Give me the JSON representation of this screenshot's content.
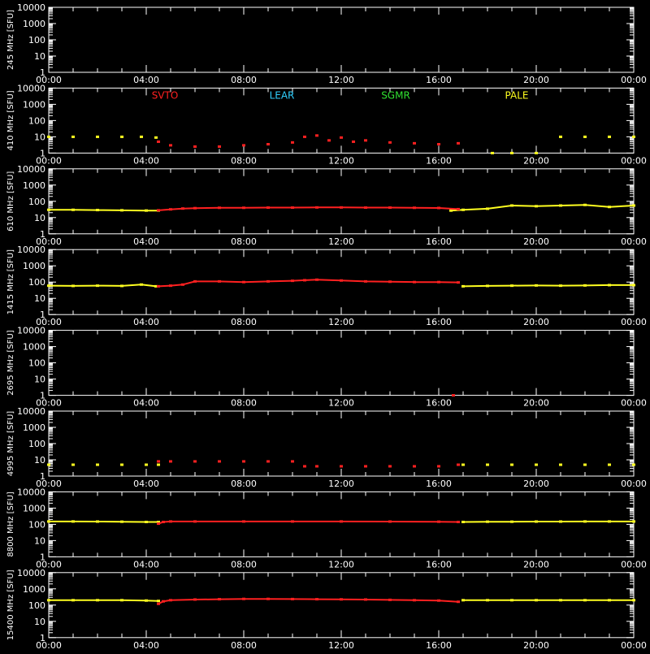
{
  "figure": {
    "background": "#000000",
    "axis_color": "#ffffff",
    "station_colors": {
      "SVTO": "#ff2020",
      "LEAR": "#30d0ff",
      "SGMR": "#30e030",
      "PALE": "#ffff20"
    },
    "legend": [
      "SVTO",
      "LEAR",
      "SGMR",
      "PALE"
    ],
    "x_tick_labels": [
      "00:00",
      "04:00",
      "08:00",
      "12:00",
      "16:00",
      "20:00",
      "00:00"
    ],
    "y_tick_labels": [
      "1",
      "10",
      "100",
      "1000",
      "10000"
    ]
  },
  "chart_data": [
    {
      "type": "scatter",
      "ylabel": "245 MHz [SFU]",
      "xlim": [
        0,
        24
      ],
      "ylim": [
        1,
        10000
      ],
      "yscale": "log",
      "series": []
    },
    {
      "type": "scatter",
      "ylabel": "410 MHz [SFU]",
      "xlim": [
        0,
        24
      ],
      "ylim": [
        1,
        10000
      ],
      "yscale": "log",
      "series": [
        {
          "name": "PALE",
          "color": "#ffff20",
          "points": [
            [
              0,
              10
            ],
            [
              1,
              10
            ],
            [
              2,
              10
            ],
            [
              3,
              10
            ],
            [
              3.8,
              10
            ],
            [
              4.4,
              9
            ],
            [
              18.2,
              1
            ],
            [
              19,
              1
            ],
            [
              20,
              1
            ],
            [
              21,
              10
            ],
            [
              22,
              10
            ],
            [
              23,
              10
            ],
            [
              24,
              10
            ]
          ]
        },
        {
          "name": "SVTO",
          "color": "#ff2020",
          "points": [
            [
              4.5,
              5
            ],
            [
              5,
              3
            ],
            [
              6,
              2.5
            ],
            [
              7,
              2.5
            ],
            [
              8,
              3
            ],
            [
              9,
              3.5
            ],
            [
              10,
              4.5
            ],
            [
              10.5,
              10
            ],
            [
              11,
              12
            ],
            [
              11.5,
              6
            ],
            [
              12,
              9
            ],
            [
              12.5,
              5
            ],
            [
              13,
              6
            ],
            [
              14,
              4.5
            ],
            [
              15,
              4
            ],
            [
              16,
              3.5
            ],
            [
              16.8,
              4
            ]
          ]
        }
      ]
    },
    {
      "type": "line",
      "ylabel": "610 MHz [SFU]",
      "xlim": [
        0,
        24
      ],
      "ylim": [
        1,
        10000
      ],
      "yscale": "log",
      "series": [
        {
          "name": "PALE",
          "color": "#ffff20",
          "points": [
            [
              0,
              30
            ],
            [
              1,
              30
            ],
            [
              2,
              29
            ],
            [
              3,
              28
            ],
            [
              4,
              27
            ],
            [
              4.5,
              27
            ],
            [
              16.5,
              27
            ],
            [
              17,
              30
            ],
            [
              18,
              35
            ],
            [
              19,
              55
            ],
            [
              20,
              50
            ],
            [
              21,
              55
            ],
            [
              22,
              60
            ],
            [
              23,
              45
            ],
            [
              24,
              55
            ]
          ]
        },
        {
          "name": "SVTO",
          "color": "#ff2020",
          "points": [
            [
              4.5,
              28
            ],
            [
              5,
              32
            ],
            [
              5.5,
              36
            ],
            [
              6,
              38
            ],
            [
              7,
              40
            ],
            [
              8,
              40
            ],
            [
              9,
              41
            ],
            [
              10,
              41
            ],
            [
              11,
              42
            ],
            [
              12,
              42
            ],
            [
              13,
              41
            ],
            [
              14,
              41
            ],
            [
              15,
              40
            ],
            [
              16,
              39
            ],
            [
              16.8,
              33
            ]
          ]
        }
      ]
    },
    {
      "type": "line",
      "ylabel": "1415 MHz [SFU]",
      "xlim": [
        0,
        24
      ],
      "ylim": [
        1,
        10000
      ],
      "yscale": "log",
      "series": [
        {
          "name": "PALE",
          "color": "#ffff20",
          "points": [
            [
              0,
              60
            ],
            [
              1,
              58
            ],
            [
              2,
              60
            ],
            [
              3,
              58
            ],
            [
              3.8,
              70
            ],
            [
              4.4,
              55
            ],
            [
              17,
              55
            ],
            [
              18,
              58
            ],
            [
              19,
              60
            ],
            [
              20,
              62
            ],
            [
              21,
              60
            ],
            [
              22,
              62
            ],
            [
              23,
              65
            ],
            [
              24,
              65
            ]
          ]
        },
        {
          "name": "SVTO",
          "color": "#ff2020",
          "points": [
            [
              4.5,
              55
            ],
            [
              5,
              60
            ],
            [
              5.5,
              70
            ],
            [
              6,
              110
            ],
            [
              7,
              110
            ],
            [
              8,
              100
            ],
            [
              9,
              110
            ],
            [
              10,
              120
            ],
            [
              10.5,
              130
            ],
            [
              11,
              140
            ],
            [
              12,
              125
            ],
            [
              13,
              110
            ],
            [
              14,
              105
            ],
            [
              15,
              100
            ],
            [
              16,
              100
            ],
            [
              16.8,
              95
            ]
          ]
        }
      ]
    },
    {
      "type": "scatter",
      "ylabel": "2695 MHz [SFU]",
      "xlim": [
        0,
        24
      ],
      "ylim": [
        1,
        10000
      ],
      "yscale": "log",
      "series": [
        {
          "name": "SVTO",
          "color": "#ff2020",
          "points": [
            [
              16.6,
              1
            ]
          ]
        }
      ]
    },
    {
      "type": "scatter",
      "ylabel": "4995 MHz [SFU]",
      "xlim": [
        0,
        24
      ],
      "ylim": [
        1,
        10000
      ],
      "yscale": "log",
      "series": [
        {
          "name": "PALE",
          "color": "#ffff20",
          "points": [
            [
              0,
              5
            ],
            [
              1,
              5
            ],
            [
              2,
              5
            ],
            [
              3,
              5
            ],
            [
              4,
              5
            ],
            [
              4.5,
              5
            ],
            [
              17,
              5
            ],
            [
              18,
              5
            ],
            [
              19,
              5
            ],
            [
              20,
              5
            ],
            [
              21,
              5
            ],
            [
              22,
              5
            ],
            [
              23,
              5
            ],
            [
              24,
              5
            ]
          ]
        },
        {
          "name": "SVTO",
          "color": "#ff2020",
          "points": [
            [
              4.5,
              8
            ],
            [
              5,
              8
            ],
            [
              6,
              8
            ],
            [
              7,
              8
            ],
            [
              8,
              8
            ],
            [
              9,
              8
            ],
            [
              10,
              8
            ],
            [
              10.5,
              4
            ],
            [
              11,
              4
            ],
            [
              12,
              4
            ],
            [
              13,
              4
            ],
            [
              14,
              4
            ],
            [
              15,
              4
            ],
            [
              16,
              4
            ],
            [
              16.8,
              5
            ]
          ]
        }
      ]
    },
    {
      "type": "line",
      "ylabel": "8800 MHz [SFU]",
      "xlim": [
        0,
        24
      ],
      "ylim": [
        1,
        10000
      ],
      "yscale": "log",
      "series": [
        {
          "name": "PALE",
          "color": "#ffff20",
          "points": [
            [
              0,
              150
            ],
            [
              1,
              150
            ],
            [
              2,
              148
            ],
            [
              3,
              145
            ],
            [
              4,
              140
            ],
            [
              4.5,
              140
            ],
            [
              17,
              140
            ],
            [
              18,
              145
            ],
            [
              19,
              145
            ],
            [
              20,
              148
            ],
            [
              21,
              148
            ],
            [
              22,
              150
            ],
            [
              23,
              150
            ],
            [
              24,
              150
            ]
          ]
        },
        {
          "name": "SVTO",
          "color": "#ff2020",
          "points": [
            [
              4.5,
              110
            ],
            [
              4.7,
              140
            ],
            [
              5,
              150
            ],
            [
              6,
              150
            ],
            [
              8,
              150
            ],
            [
              10,
              150
            ],
            [
              12,
              150
            ],
            [
              14,
              148
            ],
            [
              16,
              145
            ],
            [
              16.8,
              140
            ]
          ]
        }
      ]
    },
    {
      "type": "line",
      "ylabel": "15400 MHz [SFU]",
      "xlim": [
        0,
        24
      ],
      "ylim": [
        1,
        10000
      ],
      "yscale": "log",
      "series": [
        {
          "name": "PALE",
          "color": "#ffff20",
          "points": [
            [
              0,
              200
            ],
            [
              1,
              200
            ],
            [
              2,
              200
            ],
            [
              3,
              200
            ],
            [
              4,
              190
            ],
            [
              4.5,
              180
            ],
            [
              17,
              200
            ],
            [
              18,
              200
            ],
            [
              19,
              200
            ],
            [
              20,
              200
            ],
            [
              21,
              200
            ],
            [
              22,
              200
            ],
            [
              23,
              200
            ],
            [
              24,
              200
            ]
          ]
        },
        {
          "name": "SVTO",
          "color": "#ff2020",
          "points": [
            [
              4.5,
              120
            ],
            [
              4.7,
              170
            ],
            [
              5,
              200
            ],
            [
              6,
              220
            ],
            [
              7,
              230
            ],
            [
              8,
              240
            ],
            [
              9,
              240
            ],
            [
              10,
              235
            ],
            [
              11,
              230
            ],
            [
              12,
              225
            ],
            [
              13,
              220
            ],
            [
              14,
              210
            ],
            [
              15,
              200
            ],
            [
              16,
              190
            ],
            [
              16.8,
              160
            ]
          ]
        }
      ]
    }
  ]
}
